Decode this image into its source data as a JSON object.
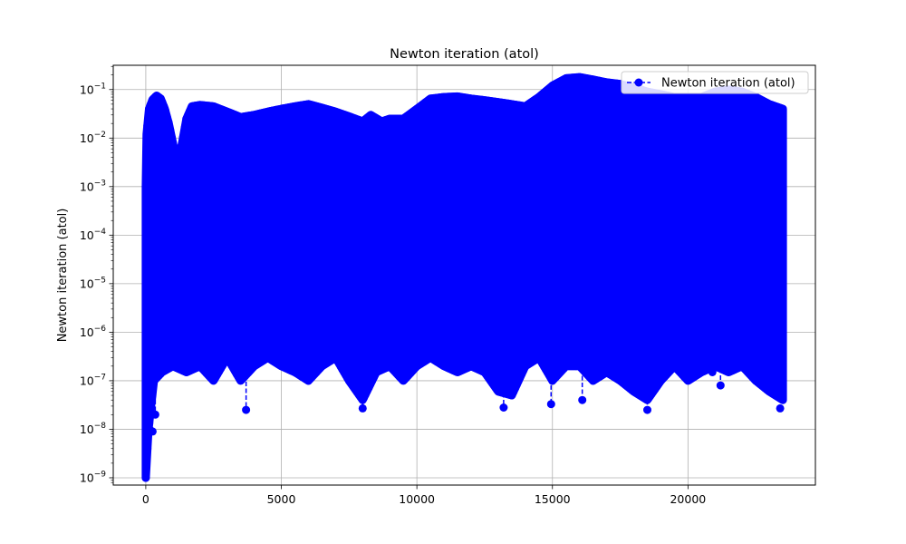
{
  "chart_data": {
    "type": "line",
    "title": "Newton iteration (atol)",
    "xlabel": "",
    "ylabel": "Newton iteration (atol)",
    "xlim": [
      -1200,
      24700
    ],
    "ylim_log10": [
      -9.15,
      -0.5
    ],
    "yscale": "log",
    "grid": true,
    "legend_position": "top-right",
    "x_ticks": [
      0,
      5000,
      10000,
      15000,
      20000
    ],
    "x_tick_labels": [
      "0",
      "5000",
      "10000",
      "15000",
      "20000"
    ],
    "y_ticks_exp": [
      -9,
      -8,
      -7,
      -6,
      -5,
      -4,
      -3,
      -2,
      -1
    ],
    "y_tick_labels_exp": [
      "−9",
      "−8",
      "−7",
      "−6",
      "−5",
      "−4",
      "−3",
      "−2",
      "−1"
    ],
    "y_tick_base": "10",
    "series": [
      {
        "name": "Newton iteration (atol)",
        "color": "#0000ff",
        "marker": "circle",
        "linestyle": "dashed",
        "x_range": [
          0,
          23500
        ],
        "upper_envelope": [
          [
            0,
            0.001
          ],
          [
            30,
            0.012
          ],
          [
            120,
            0.04
          ],
          [
            250,
            0.062
          ],
          [
            400,
            0.075
          ],
          [
            550,
            0.065
          ],
          [
            700,
            0.04
          ],
          [
            850,
            0.02
          ],
          [
            1000,
            0.008
          ],
          [
            1150,
            0.003
          ],
          [
            1300,
            0.006
          ],
          [
            1500,
            0.025
          ],
          [
            1700,
            0.045
          ],
          [
            2000,
            0.048
          ],
          [
            2500,
            0.045
          ],
          [
            3000,
            0.035
          ],
          [
            3500,
            0.027
          ],
          [
            4000,
            0.03
          ],
          [
            4500,
            0.035
          ],
          [
            5000,
            0.04
          ],
          [
            5500,
            0.045
          ],
          [
            6000,
            0.05
          ],
          [
            6500,
            0.042
          ],
          [
            7000,
            0.035
          ],
          [
            7500,
            0.028
          ],
          [
            8000,
            0.022
          ],
          [
            8300,
            0.03
          ],
          [
            8700,
            0.022
          ],
          [
            9000,
            0.025
          ],
          [
            9500,
            0.025
          ],
          [
            10000,
            0.04
          ],
          [
            10500,
            0.065
          ],
          [
            11000,
            0.07
          ],
          [
            11500,
            0.072
          ],
          [
            12000,
            0.065
          ],
          [
            12500,
            0.06
          ],
          [
            13000,
            0.055
          ],
          [
            13500,
            0.05
          ],
          [
            14000,
            0.045
          ],
          [
            14500,
            0.07
          ],
          [
            15000,
            0.12
          ],
          [
            15500,
            0.17
          ],
          [
            16000,
            0.18
          ],
          [
            16500,
            0.16
          ],
          [
            17000,
            0.14
          ],
          [
            17500,
            0.13
          ],
          [
            18000,
            0.11
          ],
          [
            18500,
            0.09
          ],
          [
            19000,
            0.08
          ],
          [
            19500,
            0.07
          ],
          [
            20000,
            0.07
          ],
          [
            20500,
            0.07
          ],
          [
            21000,
            0.09
          ],
          [
            21500,
            0.1
          ],
          [
            22000,
            0.09
          ],
          [
            22500,
            0.07
          ],
          [
            23000,
            0.05
          ],
          [
            23500,
            0.04
          ]
        ],
        "lower_envelope": [
          [
            0,
            1e-09
          ],
          [
            100,
            1e-08
          ],
          [
            300,
            1e-07
          ],
          [
            600,
            1.5e-07
          ],
          [
            1000,
            2e-07
          ],
          [
            1500,
            1.5e-07
          ],
          [
            2000,
            2e-07
          ],
          [
            2500,
            1e-07
          ],
          [
            3000,
            3e-07
          ],
          [
            3500,
            1e-07
          ],
          [
            4000,
            2e-07
          ],
          [
            4500,
            3e-07
          ],
          [
            5000,
            2e-07
          ],
          [
            5500,
            1.5e-07
          ],
          [
            6000,
            1e-07
          ],
          [
            6500,
            2e-07
          ],
          [
            7000,
            3e-07
          ],
          [
            7500,
            1e-07
          ],
          [
            8000,
            4e-08
          ],
          [
            8500,
            1.5e-07
          ],
          [
            9000,
            2e-07
          ],
          [
            9500,
            1e-07
          ],
          [
            10000,
            2e-07
          ],
          [
            10500,
            3e-07
          ],
          [
            11000,
            2e-07
          ],
          [
            11500,
            1.5e-07
          ],
          [
            12000,
            2e-07
          ],
          [
            12500,
            1.5e-07
          ],
          [
            13000,
            6e-08
          ],
          [
            13500,
            5e-08
          ],
          [
            14000,
            2e-07
          ],
          [
            14500,
            3e-07
          ],
          [
            15000,
            1e-07
          ],
          [
            15500,
            2e-07
          ],
          [
            16000,
            2e-07
          ],
          [
            16500,
            1e-07
          ],
          [
            17000,
            1.5e-07
          ],
          [
            17500,
            1e-07
          ],
          [
            18000,
            6e-08
          ],
          [
            18500,
            4e-08
          ],
          [
            19000,
            1e-07
          ],
          [
            19500,
            2e-07
          ],
          [
            20000,
            1e-07
          ],
          [
            20500,
            1.5e-07
          ],
          [
            21000,
            2e-07
          ],
          [
            21500,
            1.5e-07
          ],
          [
            22000,
            2e-07
          ],
          [
            22500,
            1e-07
          ],
          [
            23000,
            6e-08
          ],
          [
            23500,
            4e-08
          ]
        ],
        "outlier_points": [
          [
            15,
            1.9e-09
          ],
          [
            50,
            9e-09
          ],
          [
            100,
            2e-08
          ],
          [
            250,
            9e-09
          ],
          [
            350,
            2e-08
          ],
          [
            8000,
            2.7e-08
          ],
          [
            13200,
            2.8e-08
          ],
          [
            14950,
            3.3e-08
          ],
          [
            16100,
            4e-08
          ],
          [
            18500,
            2.5e-08
          ],
          [
            23400,
            2.7e-08
          ],
          [
            3700,
            2.5e-08
          ],
          [
            21200,
            8e-08
          ],
          [
            20900,
            1.5e-07
          ]
        ]
      }
    ]
  }
}
